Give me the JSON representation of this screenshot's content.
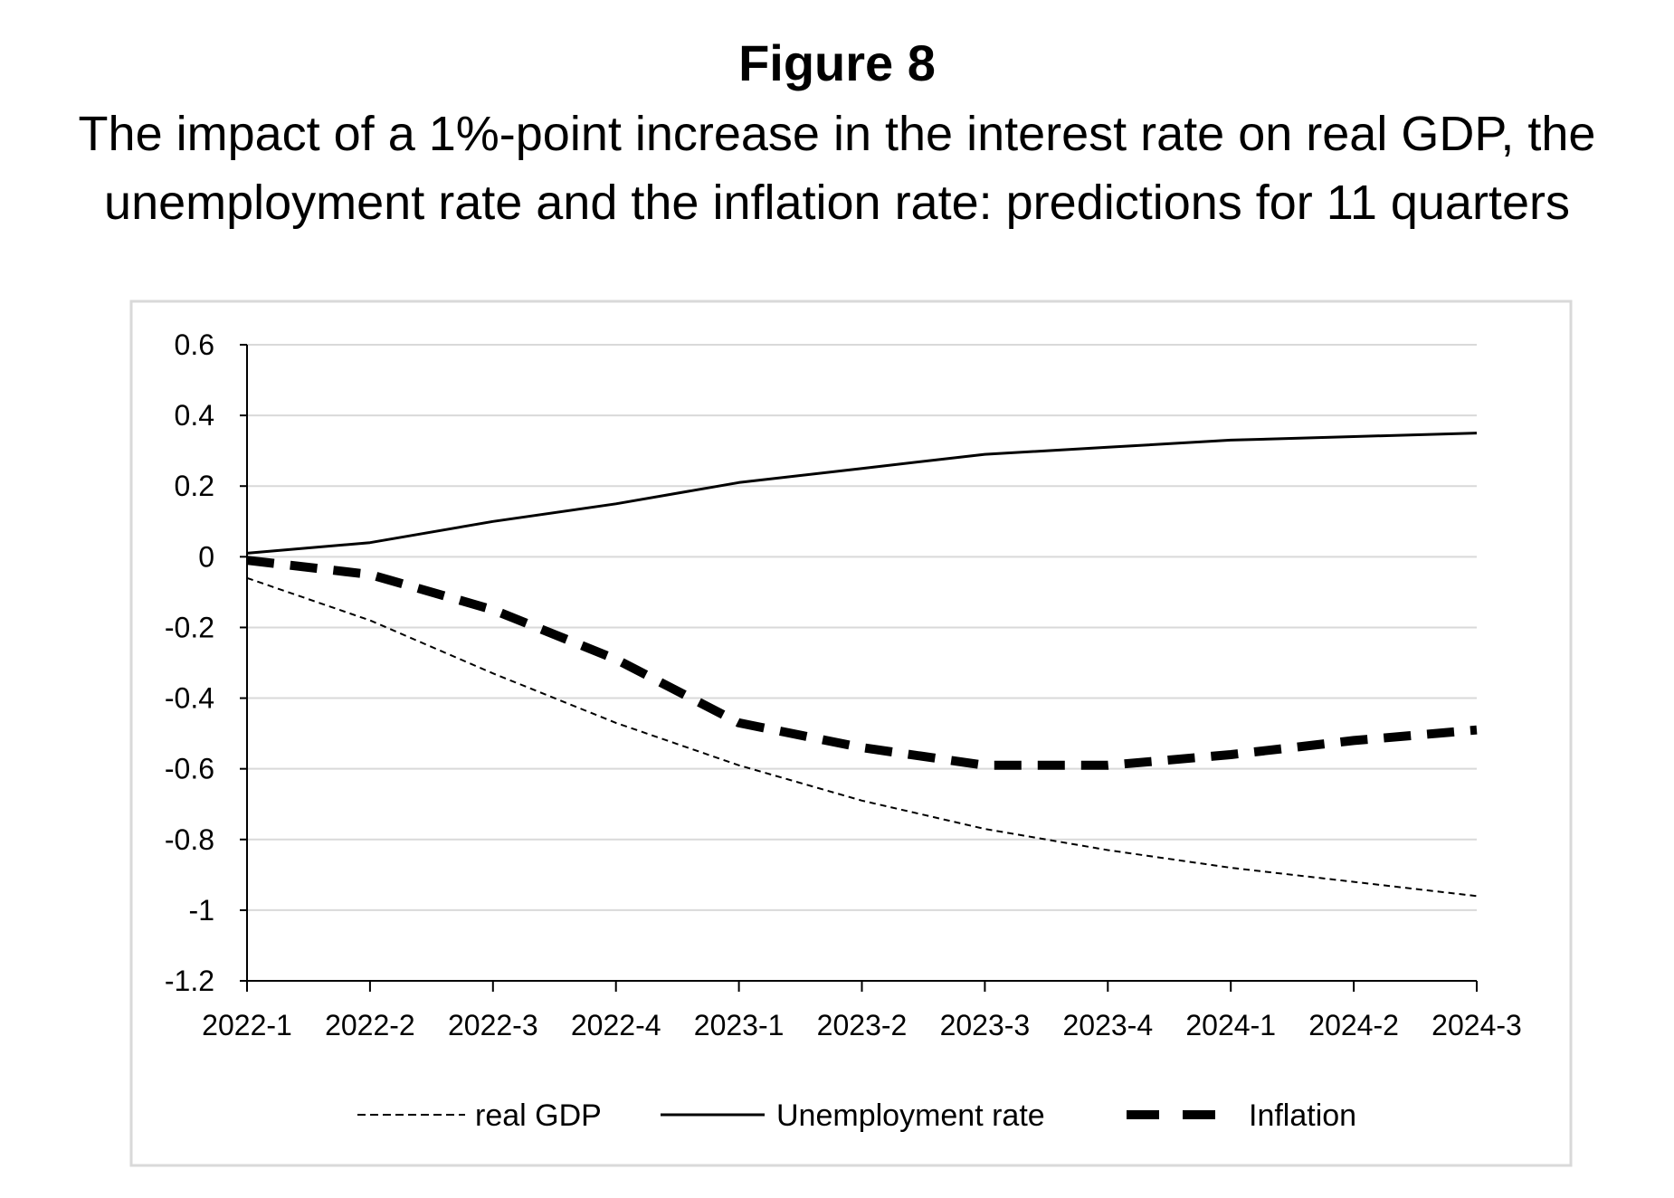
{
  "figure_label": "Figure 8",
  "figure_title": "The impact of a 1%-point increase in the interest rate on real GDP, the unemployment rate and the inflation rate: predictions for 11 quarters",
  "chart_data": {
    "type": "line",
    "title": "The impact of a 1%-point increase in the interest rate on real GDP, the unemployment rate and the inflation rate: predictions for 11 quarters",
    "xlabel": "",
    "ylabel": "",
    "categories": [
      "2022-1",
      "2022-2",
      "2022-3",
      "2022-4",
      "2023-1",
      "2023-2",
      "2023-3",
      "2023-4",
      "2024-1",
      "2024-2",
      "2024-3"
    ],
    "ylim": [
      -1.2,
      0.6
    ],
    "yticks": [
      "0.6",
      "0.4",
      "0.2",
      "0",
      "-0.2",
      "-0.4",
      "-0.6",
      "-0.8",
      "-1",
      "-1.2"
    ],
    "grid": true,
    "legend_position": "bottom",
    "series": [
      {
        "name": "real GDP",
        "style": "thin-dashed",
        "values": [
          -0.06,
          -0.18,
          -0.33,
          -0.47,
          -0.59,
          -0.69,
          -0.77,
          -0.83,
          -0.88,
          -0.92,
          -0.96
        ]
      },
      {
        "name": "Unemployment rate",
        "style": "solid",
        "values": [
          0.01,
          0.04,
          0.1,
          0.15,
          0.21,
          0.25,
          0.29,
          0.31,
          0.33,
          0.34,
          0.35
        ]
      },
      {
        "name": "Inflation",
        "style": "thick-dashed",
        "values": [
          -0.01,
          -0.05,
          -0.15,
          -0.29,
          -0.47,
          -0.54,
          -0.59,
          -0.59,
          -0.56,
          -0.52,
          -0.49
        ]
      }
    ],
    "colors": {
      "line": "#000000",
      "grid": "#d9d9d9",
      "border": "#d9d9d9"
    }
  }
}
